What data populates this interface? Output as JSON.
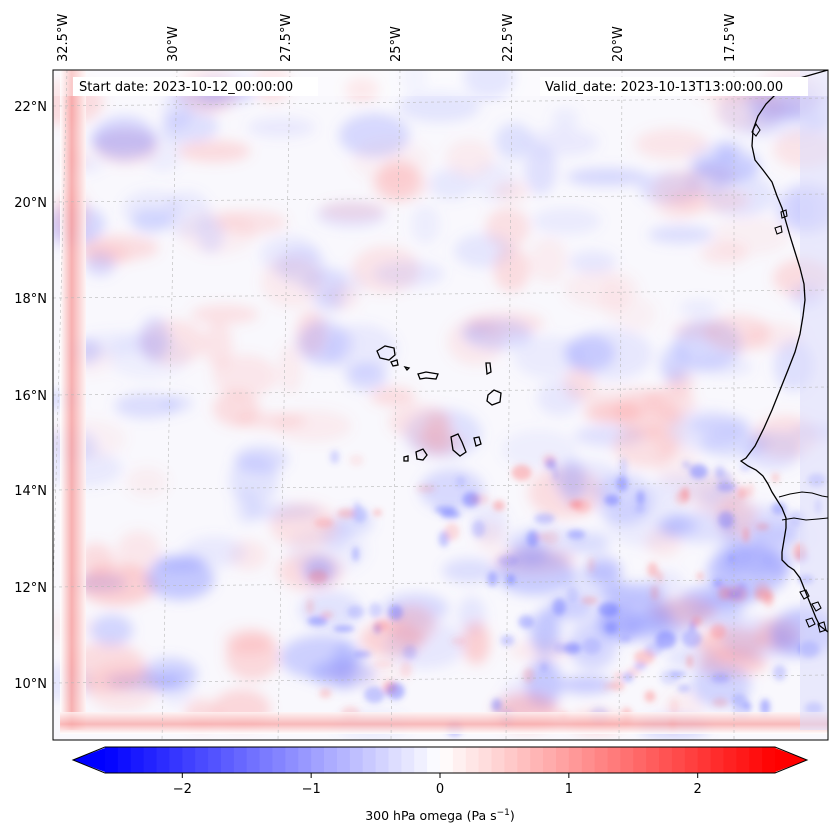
{
  "map": {
    "start_date": "Start date: 2023-10-12_00:00:00",
    "valid_date": "Valid_date: 2023-10-13T13:00:00.00",
    "lon_ticks": [
      "32.5°W",
      "30°W",
      "27.5°W",
      "25°W",
      "22.5°W",
      "20°W",
      "17.5°W"
    ],
    "lat_ticks": [
      "22°N",
      "20°N",
      "18°N",
      "16°N",
      "14°N",
      "12°N",
      "10°N"
    ],
    "gridlines": true,
    "field": "300 hPa vertical velocity (omega), diverging blue-white-red shading",
    "features": [
      "Cape Verde islands",
      "West African coastline (Mauritania, Senegal, Gambia, Guinea-Bissau)"
    ]
  },
  "colorbar": {
    "label_prefix": "300 hPa omega (Pa s",
    "label_exp": "−1",
    "label_suffix": ")",
    "tick_labels": [
      "−2",
      "−1",
      "0",
      "1",
      "2"
    ],
    "tick_values": [
      -2,
      -1,
      0,
      1,
      2
    ],
    "vmin": -2.6,
    "vmax": 2.6,
    "extend": "both",
    "colors": {
      "min": "#0000ff",
      "mid": "#ffffff",
      "max": "#ff0000"
    }
  }
}
